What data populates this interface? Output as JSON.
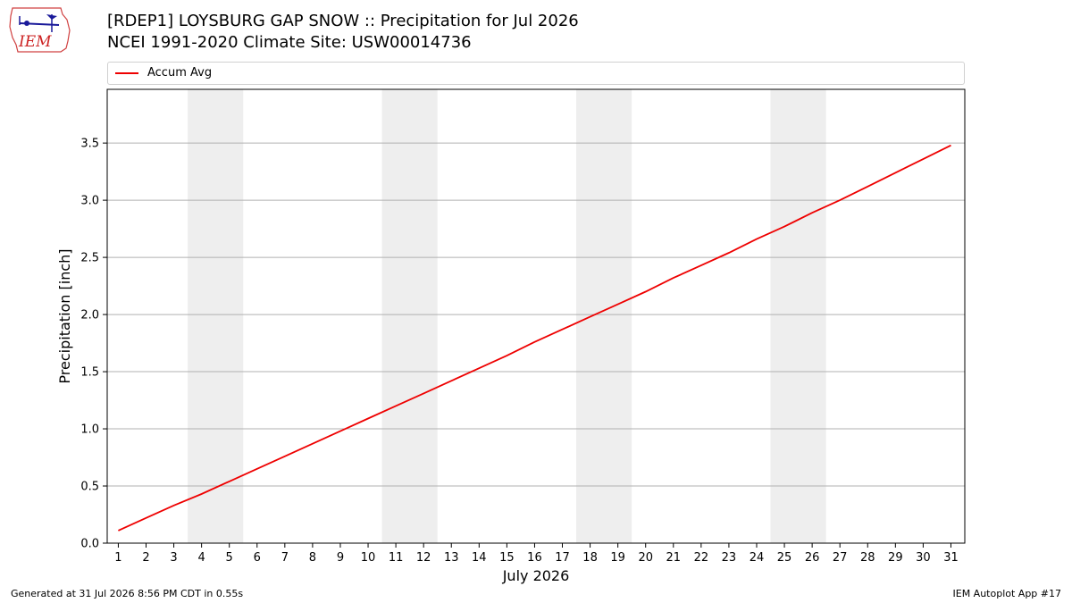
{
  "header": {
    "title_line1": "[RDEP1] LOYSBURG GAP SNOW :: Precipitation for Jul 2026",
    "title_line2": "NCEI 1991-2020 Climate Site: USW00014736",
    "logo_text": "IEM"
  },
  "legend": {
    "label": "Accum Avg",
    "color": "#ee0000"
  },
  "footer": {
    "left": "Generated at 31 Jul 2026 8:56 PM CDT in 0.55s",
    "right": "IEM Autoplot App #17"
  },
  "chart_data": {
    "type": "line",
    "xlabel": "July 2026",
    "ylabel": "Precipitation [inch]",
    "xlim": [
      0.6,
      31.5
    ],
    "ylim": [
      0.0,
      3.97
    ],
    "grid": "horizontal",
    "legend_position": "top",
    "weekend_bands": [
      [
        3.5,
        5.5
      ],
      [
        10.5,
        12.5
      ],
      [
        17.5,
        19.5
      ],
      [
        24.5,
        26.5
      ]
    ],
    "x": [
      1,
      2,
      3,
      4,
      5,
      6,
      7,
      8,
      9,
      10,
      11,
      12,
      13,
      14,
      15,
      16,
      17,
      18,
      19,
      20,
      21,
      22,
      23,
      24,
      25,
      26,
      27,
      28,
      29,
      30,
      31
    ],
    "x_tick_labels": [
      "1",
      "2",
      "3",
      "4",
      "5",
      "6",
      "7",
      "8",
      "9",
      "10",
      "11",
      "12",
      "13",
      "14",
      "15",
      "16",
      "17",
      "18",
      "19",
      "20",
      "21",
      "22",
      "23",
      "24",
      "25",
      "26",
      "27",
      "28",
      "29",
      "30",
      "31"
    ],
    "y_ticks": [
      0.0,
      0.5,
      1.0,
      1.5,
      2.0,
      2.5,
      3.0,
      3.5
    ],
    "y_tick_labels": [
      "0.0",
      "0.5",
      "1.0",
      "1.5",
      "2.0",
      "2.5",
      "3.0",
      "3.5"
    ],
    "series": [
      {
        "name": "Accum Avg",
        "color": "#ee0000",
        "values": [
          0.11,
          0.22,
          0.33,
          0.43,
          0.54,
          0.65,
          0.76,
          0.87,
          0.98,
          1.09,
          1.2,
          1.31,
          1.42,
          1.53,
          1.64,
          1.76,
          1.87,
          1.98,
          2.09,
          2.2,
          2.32,
          2.43,
          2.54,
          2.66,
          2.77,
          2.89,
          3.0,
          3.12,
          3.24,
          3.36,
          3.48
        ]
      }
    ]
  }
}
